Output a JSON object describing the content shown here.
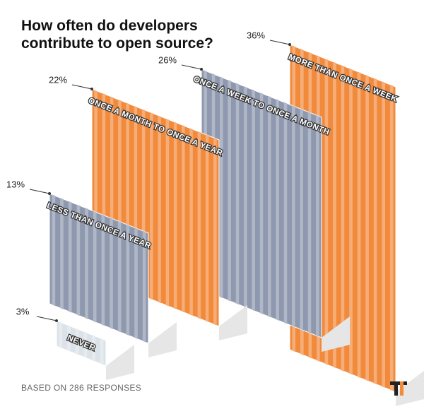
{
  "chart_data": {
    "type": "bar",
    "title": "How often do developers contribute to open source?",
    "footnote": "BASED ON 286 RESPONSES",
    "categories": [
      "NEVER",
      "LESS THAN ONCE A YEAR",
      "ONCE A MONTH TO ONCE A YEAR",
      "ONCE A WEEK TO ONCE A MONTH",
      "MORE THAN ONCE A WEEK"
    ],
    "values": [
      3,
      13,
      22,
      26,
      36
    ],
    "value_labels": [
      "3%",
      "13%",
      "22%",
      "26%",
      "36%"
    ],
    "colors": [
      "#dbe3e8",
      "#8e98ae",
      "#f28a3c",
      "#8e98ae",
      "#f28a3c"
    ]
  }
}
